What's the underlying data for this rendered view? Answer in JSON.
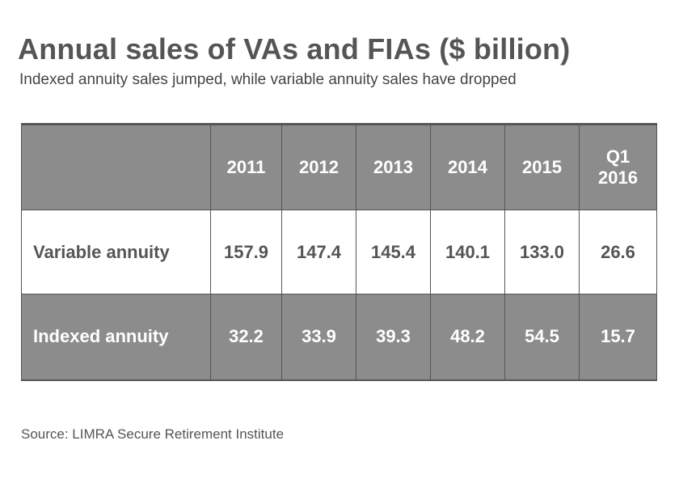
{
  "title": "Annual sales of VAs and FIAs ($ billion)",
  "subtitle": "Indexed annuity sales jumped, while variable annuity sales have dropped",
  "source": "Source: LIMRA Secure Retirement Institute",
  "chart_data": {
    "type": "table",
    "title": "Annual sales of VAs and FIAs ($ billion)",
    "subtitle": "Indexed annuity sales jumped, while variable annuity sales have dropped",
    "columns": [
      {
        "lines": [
          "2011"
        ]
      },
      {
        "lines": [
          "2012"
        ]
      },
      {
        "lines": [
          "2013"
        ]
      },
      {
        "lines": [
          "2014"
        ]
      },
      {
        "lines": [
          "2015"
        ]
      },
      {
        "lines": [
          "Q1",
          "2016"
        ]
      }
    ],
    "rows": [
      {
        "label": "Variable annuity",
        "values": [
          "157.9",
          "147.4",
          "145.4",
          "140.1",
          "133.0",
          "26.6"
        ]
      },
      {
        "label": "Indexed annuity",
        "values": [
          "32.2",
          "33.9",
          "39.3",
          "48.2",
          "54.5",
          "15.7"
        ]
      }
    ],
    "colors": {
      "header_bg": "#8c8c8c",
      "dark_row_bg": "#8c8c8c",
      "light_row_bg": "#ffffff",
      "title_text": "#555555",
      "border": "#555555"
    }
  }
}
